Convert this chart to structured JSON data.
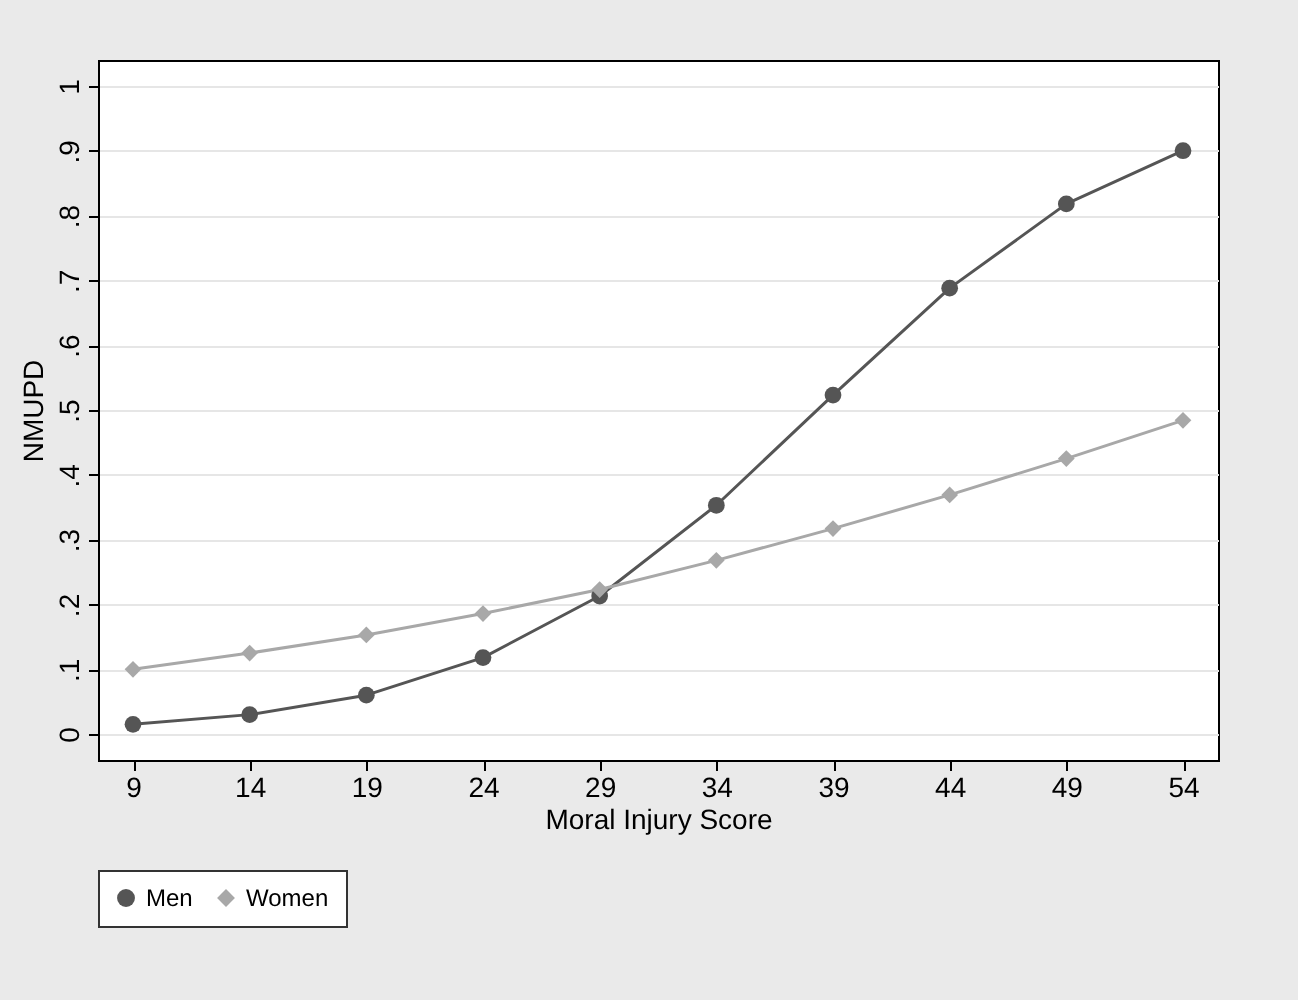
{
  "chart_data": {
    "type": "line",
    "xlabel": "Moral Injury Score",
    "ylabel": "NMUPD",
    "x": [
      9,
      14,
      19,
      24,
      29,
      34,
      39,
      44,
      49,
      54
    ],
    "series": [
      {
        "name": "Men",
        "color": "#555555",
        "marker": "circle",
        "values": [
          0.015,
          0.03,
          0.06,
          0.118,
          0.213,
          0.353,
          0.523,
          0.688,
          0.818,
          0.9
        ]
      },
      {
        "name": "Women",
        "color": "#a8a8a8",
        "marker": "diamond",
        "values": [
          0.1,
          0.125,
          0.153,
          0.186,
          0.223,
          0.268,
          0.317,
          0.369,
          0.425,
          0.484
        ]
      }
    ],
    "xlim": [
      7.5,
      55.5
    ],
    "xticks": [
      9,
      14,
      19,
      24,
      29,
      34,
      39,
      44,
      49,
      54
    ],
    "ylim": [
      -0.04,
      1.04
    ],
    "yticks": [
      0,
      {
        "value": 0.1,
        "label": ".1"
      },
      {
        "value": 0.2,
        "label": ".2"
      },
      {
        "value": 0.3,
        "label": ".3"
      },
      {
        "value": 0.4,
        "label": ".4"
      },
      {
        "value": 0.5,
        "label": ".5"
      },
      {
        "value": 0.6,
        "label": ".6"
      },
      {
        "value": 0.7,
        "label": ".7"
      },
      {
        "value": 0.8,
        "label": ".8"
      },
      {
        "value": 0.9,
        "label": ".9"
      },
      1
    ],
    "grid": "y",
    "legend": "bottom",
    "line_style": "solid"
  }
}
